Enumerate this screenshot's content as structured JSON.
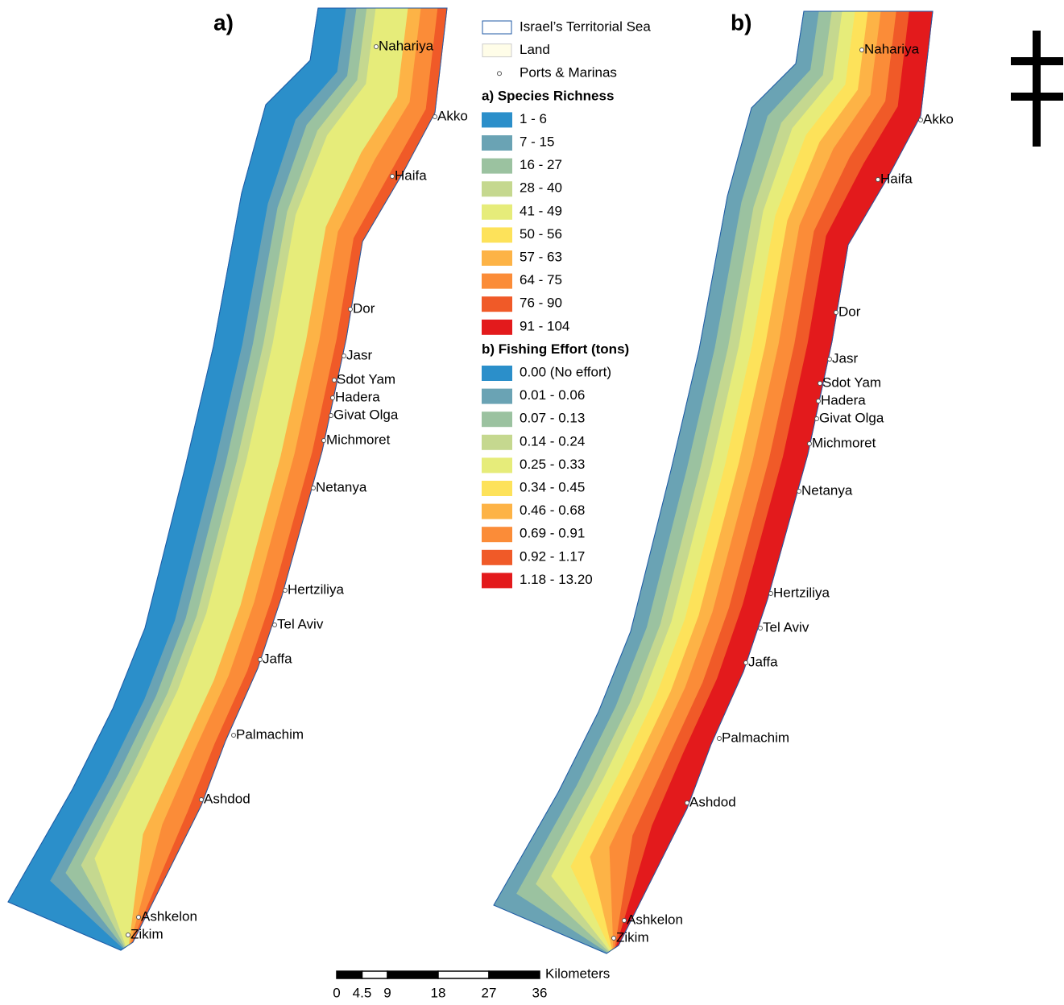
{
  "panels": [
    {
      "label": "a)"
    },
    {
      "label": "b)"
    }
  ],
  "places": [
    "Nahariya",
    "Akko",
    "Haifa",
    "Dor",
    "Jasr",
    "Sdot Yam",
    "Hadera",
    "Givat Olga",
    "Michmoret",
    "Netanya",
    "Hertziliya",
    "Tel Aviv",
    "Jaffa",
    "Palmachim",
    "Ashdod",
    "Ashkelon",
    "Zikim"
  ],
  "legend": {
    "general": [
      "Israel’s Territorial Sea",
      "Land",
      "Ports & Marinas"
    ],
    "species": {
      "title": "a) Species Richness",
      "classes": [
        "1 - 6",
        "7 - 15",
        "16 - 27",
        "28 - 40",
        "41 - 49",
        "50 - 56",
        "57 - 63",
        "64 - 75",
        "76 - 90",
        "91 - 104"
      ]
    },
    "fishing": {
      "title": "b) Fishing Effort (tons)",
      "classes": [
        "0.00 (No effort)",
        "0.01 - 0.06",
        "0.07 - 0.13",
        "0.14 - 0.24",
        "0.25 - 0.33",
        "0.34 - 0.45",
        "0.46 - 0.68",
        "0.69 - 0.91",
        "0.92 - 1.17",
        "1.18 - 13.20"
      ]
    },
    "colors": [
      "#2b8fca",
      "#6aa3b4",
      "#9bc2a0",
      "#c5d88f",
      "#e6ec7a",
      "#fde25a",
      "#fdb346",
      "#fb8c38",
      "#f05a28",
      "#e31a1c"
    ]
  },
  "scale": {
    "unit": "Kilometers",
    "ticks": [
      0,
      4.5,
      9,
      18,
      27,
      36
    ]
  }
}
